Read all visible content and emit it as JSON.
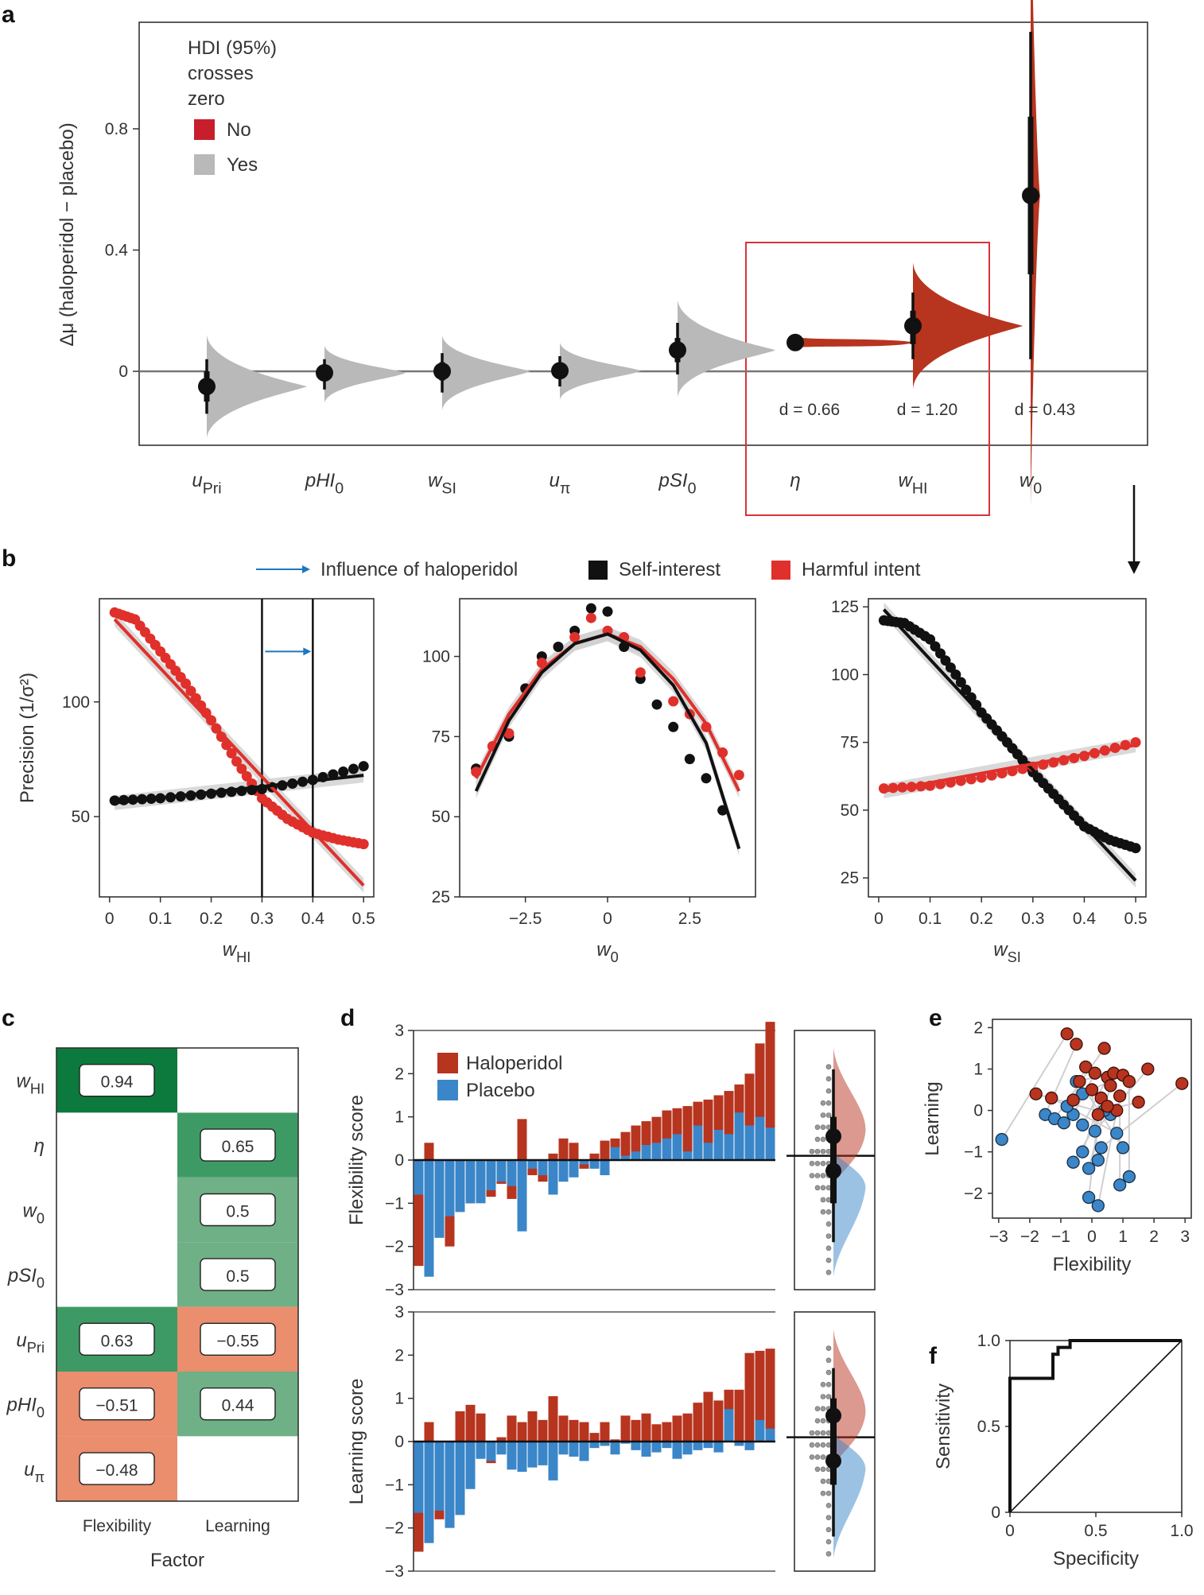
{
  "panel_labels": [
    "a",
    "b",
    "c",
    "d",
    "e",
    "f"
  ],
  "colors": {
    "red_dark": "#b7341f",
    "red": "#e0302b",
    "grey": "#b9b9b9",
    "black": "#111111",
    "blue": "#3a86c8",
    "green_dark": "#0c7a3c",
    "green_mid": "#3e9a65",
    "green_light": "#6fb087",
    "orange": "#ea8e6e",
    "box_red": "#d8333b",
    "arrow_blue": "#1f77c0"
  },
  "chart_data": [
    {
      "panel": "a",
      "type": "scatter",
      "ylabel": "Δμ (haloperidol − placebo)",
      "yticks": [
        "0",
        "0.4",
        "0.8"
      ],
      "ylim": [
        -0.25,
        1.15
      ],
      "legend": {
        "title_lines": [
          "HDI (95%)",
          "crosses",
          "zero"
        ],
        "entries": [
          "No",
          "Yes"
        ]
      },
      "categories": [
        {
          "label": "u",
          "sub": "Pri",
          "mean": -0.05,
          "hdi50": [
            -0.1,
            0.0
          ],
          "hdi95": [
            -0.14,
            0.04
          ],
          "crosses_zero": true
        },
        {
          "label": "pHI",
          "sub": "0",
          "mean": -0.005,
          "hdi50": [
            -0.03,
            0.02
          ],
          "hdi95": [
            -0.06,
            0.04
          ],
          "crosses_zero": true
        },
        {
          "label": "w",
          "sub": "SI",
          "mean": 0.0,
          "hdi50": [
            -0.03,
            0.03
          ],
          "hdi95": [
            -0.07,
            0.06
          ],
          "crosses_zero": true
        },
        {
          "label": "u",
          "sub": "π",
          "mean": 0.002,
          "hdi50": [
            -0.02,
            0.025
          ],
          "hdi95": [
            -0.05,
            0.05
          ],
          "crosses_zero": true
        },
        {
          "label": "pSI",
          "sub": "0",
          "mean": 0.07,
          "hdi50": [
            0.03,
            0.11
          ],
          "hdi95": [
            -0.01,
            0.16
          ],
          "crosses_zero": true
        },
        {
          "label": "η",
          "sub": "",
          "mean": 0.095,
          "hdi50": [
            0.09,
            0.1
          ],
          "hdi95": [
            0.085,
            0.105
          ],
          "crosses_zero": false,
          "d": "d = 0.66"
        },
        {
          "label": "w",
          "sub": "HI",
          "mean": 0.15,
          "hdi50": [
            0.09,
            0.2
          ],
          "hdi95": [
            0.04,
            0.26
          ],
          "crosses_zero": false,
          "d": "d = 1.20"
        },
        {
          "label": "w",
          "sub": "0",
          "mean": 0.58,
          "hdi50": [
            0.32,
            0.84
          ],
          "hdi95": [
            0.04,
            1.12
          ],
          "crosses_zero": false,
          "d": "d = 0.43"
        }
      ]
    },
    {
      "panel": "b",
      "type": "line",
      "legend": [
        "Influence of haloperidol",
        "Self-interest",
        "Harmful intent"
      ],
      "ylabel": "Precision (1/σ²)",
      "subplots": [
        {
          "xlabel": "w",
          "xsub": "HI",
          "xlim": [
            -0.02,
            0.52
          ],
          "ylim": [
            15,
            145
          ],
          "xticks": [
            "0",
            "0.1",
            "0.2",
            "0.3",
            "0.4",
            "0.5"
          ],
          "yticks": [
            "50",
            "100"
          ],
          "vlines": [
            0.3,
            0.4
          ],
          "series": [
            {
              "name": "Harmful intent",
              "x": [
                0.01,
                0.05,
                0.1,
                0.15,
                0.2,
                0.25,
                0.3,
                0.35,
                0.4,
                0.45,
                0.5
              ],
              "y": [
                139,
                136,
                122,
                108,
                92,
                74,
                58,
                49,
                43,
                40,
                38
              ]
            },
            {
              "name": "Self-interest",
              "x": [
                0.01,
                0.1,
                0.2,
                0.3,
                0.4,
                0.5
              ],
              "y": [
                57,
                58,
                60,
                62,
                66,
                72
              ]
            }
          ],
          "fits": [
            {
              "name": "Harmful intent",
              "x": [
                0.01,
                0.5
              ],
              "y": [
                136,
                20
              ]
            },
            {
              "name": "Self-interest",
              "x": [
                0.01,
                0.5
              ],
              "y": [
                56,
                68
              ]
            }
          ]
        },
        {
          "xlabel": "w",
          "xsub": "0",
          "xlim": [
            -4.5,
            4.5
          ],
          "ylim": [
            25,
            118
          ],
          "xticks": [
            "−2.5",
            "0",
            "2.5"
          ],
          "yticks": [
            "25",
            "50",
            "75",
            "100"
          ],
          "series": [
            {
              "name": "Self-interest",
              "x": [
                -4,
                -3,
                -2.5,
                -2,
                -1.5,
                -1,
                -0.5,
                0,
                0.5,
                1,
                1.5,
                2,
                2.5,
                3,
                3.5
              ],
              "y": [
                65,
                75,
                90,
                100,
                103,
                108,
                115,
                114,
                103,
                93,
                85,
                78,
                68,
                62,
                52
              ]
            },
            {
              "name": "Harmful intent",
              "x": [
                -4,
                -3.5,
                -3,
                -2,
                -1,
                -0.5,
                0,
                0.5,
                1,
                2,
                2.5,
                3,
                3.5,
                4
              ],
              "y": [
                64,
                72,
                76,
                98,
                106,
                112,
                108,
                106,
                95,
                86,
                82,
                78,
                70,
                63
              ]
            }
          ],
          "fits": [
            {
              "name": "Harmful intent",
              "x": [
                -4,
                -3,
                -2,
                -1,
                0,
                1,
                2,
                3,
                4
              ],
              "y": [
                62,
                82,
                96,
                104,
                107,
                103,
                93,
                79,
                58
              ]
            },
            {
              "name": "Self-interest",
              "x": [
                -4,
                -3,
                -2,
                -1,
                0,
                1,
                2,
                3,
                4
              ],
              "y": [
                58,
                80,
                95,
                104,
                107,
                102,
                91,
                73,
                40
              ]
            }
          ]
        },
        {
          "xlabel": "w",
          "xsub": "SI",
          "xlim": [
            -0.02,
            0.52
          ],
          "ylim": [
            18,
            128
          ],
          "xticks": [
            "0",
            "0.1",
            "0.2",
            "0.3",
            "0.4",
            "0.5"
          ],
          "yticks": [
            "25",
            "50",
            "75",
            "100",
            "125"
          ],
          "series": [
            {
              "name": "Self-interest",
              "x": [
                0.01,
                0.05,
                0.1,
                0.15,
                0.2,
                0.25,
                0.3,
                0.35,
                0.4,
                0.45,
                0.5
              ],
              "y": [
                120,
                119,
                113,
                100,
                86,
                75,
                64,
                54,
                44,
                39,
                36
              ]
            },
            {
              "name": "Harmful intent",
              "x": [
                0.01,
                0.1,
                0.2,
                0.3,
                0.4,
                0.5
              ],
              "y": [
                58,
                59,
                62,
                66,
                70,
                75
              ]
            }
          ],
          "fits": [
            {
              "name": "Self-interest",
              "x": [
                0.01,
                0.5
              ],
              "y": [
                124,
                24
              ]
            },
            {
              "name": "Harmful intent",
              "x": [
                0.01,
                0.5
              ],
              "y": [
                57,
                74
              ]
            }
          ]
        }
      ]
    },
    {
      "panel": "c",
      "type": "heatmap",
      "xlabel": "Factor",
      "columns": [
        "Flexibility",
        "Learning"
      ],
      "rows": [
        {
          "label": "w",
          "sub": "HI",
          "values": [
            0.94,
            null
          ],
          "text": [
            "0.94",
            ""
          ]
        },
        {
          "label": "η",
          "sub": "",
          "values": [
            null,
            0.65
          ],
          "text": [
            "",
            "0.65"
          ]
        },
        {
          "label": "w",
          "sub": "0",
          "values": [
            null,
            0.5
          ],
          "text": [
            "",
            "0.5"
          ]
        },
        {
          "label": "pSI",
          "sub": "0",
          "values": [
            null,
            0.5
          ],
          "text": [
            "",
            "0.5"
          ]
        },
        {
          "label": "u",
          "sub": "Pri",
          "values": [
            0.63,
            -0.55
          ],
          "text": [
            "0.63",
            "−0.55"
          ]
        },
        {
          "label": "pHI",
          "sub": "0",
          "values": [
            -0.51,
            0.44
          ],
          "text": [
            "−0.51",
            "0.44"
          ]
        },
        {
          "label": "u",
          "sub": "π",
          "values": [
            -0.48,
            null
          ],
          "text": [
            "−0.48",
            ""
          ]
        }
      ]
    },
    {
      "panel": "d",
      "type": "bar",
      "legend": [
        "Haloperidol",
        "Placebo"
      ],
      "subplots": [
        {
          "ylabel": "Flexibility score",
          "ylim": [
            -3,
            3
          ],
          "yticks": [
            "−3",
            "−2",
            "−1",
            "0",
            "1",
            "2",
            "3"
          ],
          "haloperidol": [
            -2.45,
            0.4,
            -0.5,
            -2.0,
            -1.2,
            -1.0,
            -0.75,
            -0.85,
            -0.55,
            -0.9,
            0.95,
            -0.35,
            -0.5,
            0.15,
            0.5,
            0.4,
            -0.2,
            0.15,
            0.45,
            0.5,
            0.65,
            0.8,
            0.9,
            1.0,
            1.15,
            1.2,
            1.25,
            1.35,
            1.4,
            1.5,
            1.6,
            1.75,
            2.0,
            2.7,
            3.2
          ],
          "placebo": [
            -0.8,
            -2.7,
            -1.8,
            -1.3,
            -1.2,
            -1.0,
            -1.0,
            -0.7,
            -0.5,
            -0.6,
            -1.65,
            -0.2,
            -0.35,
            -0.8,
            -0.5,
            -0.4,
            -0.1,
            -0.2,
            -0.35,
            0.3,
            0.1,
            0.2,
            0.35,
            0.4,
            0.5,
            0.6,
            0.2,
            0.8,
            0.4,
            0.7,
            0.6,
            1.1,
            0.8,
            1.0,
            0.75
          ]
        },
        {
          "ylabel": "Learning score",
          "ylim": [
            -3,
            3
          ],
          "yticks": [
            "−3",
            "−2",
            "−1",
            "0",
            "1",
            "2",
            "3"
          ],
          "haloperidol": [
            -2.55,
            0.45,
            -1.8,
            -1.2,
            0.7,
            0.85,
            0.65,
            -0.5,
            0.1,
            0.6,
            0.45,
            0.7,
            0.5,
            1.05,
            0.6,
            0.5,
            0.45,
            0.2,
            0.45,
            0.05,
            0.6,
            0.5,
            0.65,
            0.4,
            0.45,
            0.6,
            0.65,
            0.9,
            1.15,
            0.95,
            1.2,
            1.2,
            2.05,
            2.1,
            2.15
          ],
          "placebo": [
            -1.65,
            -2.35,
            -1.6,
            -2.0,
            -1.7,
            -1.1,
            -0.4,
            -0.45,
            -0.3,
            -0.65,
            -0.7,
            -0.6,
            -0.55,
            -0.9,
            -0.3,
            -0.35,
            -0.45,
            -0.15,
            -0.1,
            -0.3,
            -0.05,
            -0.2,
            -0.35,
            -0.25,
            -0.15,
            -0.4,
            -0.3,
            -0.2,
            -0.15,
            -0.25,
            0.75,
            -0.1,
            -0.2,
            0.5,
            0.3
          ]
        }
      ],
      "summary": [
        {
          "haloperidol_mean": 0.55,
          "placebo_mean": -0.25
        },
        {
          "haloperidol_mean": 0.6,
          "placebo_mean": -0.45
        }
      ]
    },
    {
      "panel": "e",
      "type": "scatter",
      "xlabel": "Flexibility",
      "ylabel": "Learning",
      "xlim": [
        -3.2,
        3.2
      ],
      "ylim": [
        -2.6,
        2.2
      ],
      "xticks": [
        "−3",
        "−2",
        "−1",
        "0",
        "1",
        "2",
        "3"
      ],
      "yticks": [
        "−2",
        "−1",
        "0",
        "1",
        "2"
      ],
      "haloperidol": [
        [
          -0.8,
          1.85
        ],
        [
          -0.5,
          1.6
        ],
        [
          0.4,
          1.5
        ],
        [
          -0.2,
          1.05
        ],
        [
          0.1,
          0.9
        ],
        [
          0.5,
          0.8
        ],
        [
          0.7,
          0.9
        ],
        [
          1.0,
          0.85
        ],
        [
          1.8,
          1.0
        ],
        [
          2.9,
          0.65
        ],
        [
          -1.8,
          0.4
        ],
        [
          -1.3,
          0.3
        ],
        [
          -0.4,
          0.7
        ],
        [
          0.0,
          0.5
        ],
        [
          0.3,
          0.3
        ],
        [
          0.6,
          0.6
        ],
        [
          0.9,
          0.35
        ],
        [
          1.2,
          0.7
        ],
        [
          0.2,
          -0.1
        ],
        [
          0.8,
          0.0
        ],
        [
          1.5,
          0.2
        ],
        [
          -0.6,
          0.25
        ],
        [
          0.5,
          0.1
        ]
      ],
      "placebo": [
        [
          -2.9,
          -0.7
        ],
        [
          -1.5,
          -0.1
        ],
        [
          -1.2,
          -0.2
        ],
        [
          -0.9,
          -0.3
        ],
        [
          -0.6,
          -0.1
        ],
        [
          -0.3,
          -0.35
        ],
        [
          -0.5,
          0.7
        ],
        [
          -0.3,
          0.4
        ],
        [
          0.1,
          -0.5
        ],
        [
          0.3,
          -0.9
        ],
        [
          0.6,
          -0.1
        ],
        [
          0.8,
          -0.55
        ],
        [
          1.0,
          -0.9
        ],
        [
          0.2,
          -1.2
        ],
        [
          -0.3,
          -1.0
        ],
        [
          -0.1,
          -1.4
        ],
        [
          0.9,
          -1.8
        ],
        [
          1.2,
          -1.6
        ],
        [
          -0.1,
          -2.1
        ],
        [
          0.2,
          -2.3
        ],
        [
          0.4,
          0.0
        ],
        [
          -0.8,
          0.1
        ],
        [
          -0.6,
          -1.25
        ]
      ]
    },
    {
      "panel": "f",
      "type": "line",
      "xlabel": "Specificity",
      "ylabel": "Sensitivity",
      "xlim": [
        0,
        1
      ],
      "ylim": [
        0,
        1
      ],
      "xticks": [
        "0",
        "0.5",
        "1.0"
      ],
      "yticks": [
        "0",
        "0.5",
        "1.0"
      ],
      "roc_x": [
        0,
        0,
        0.25,
        0.25,
        0.28,
        0.28,
        0.35,
        0.35,
        1
      ],
      "roc_y": [
        0,
        0.78,
        0.78,
        0.92,
        0.92,
        0.96,
        0.96,
        1,
        1
      ]
    }
  ]
}
